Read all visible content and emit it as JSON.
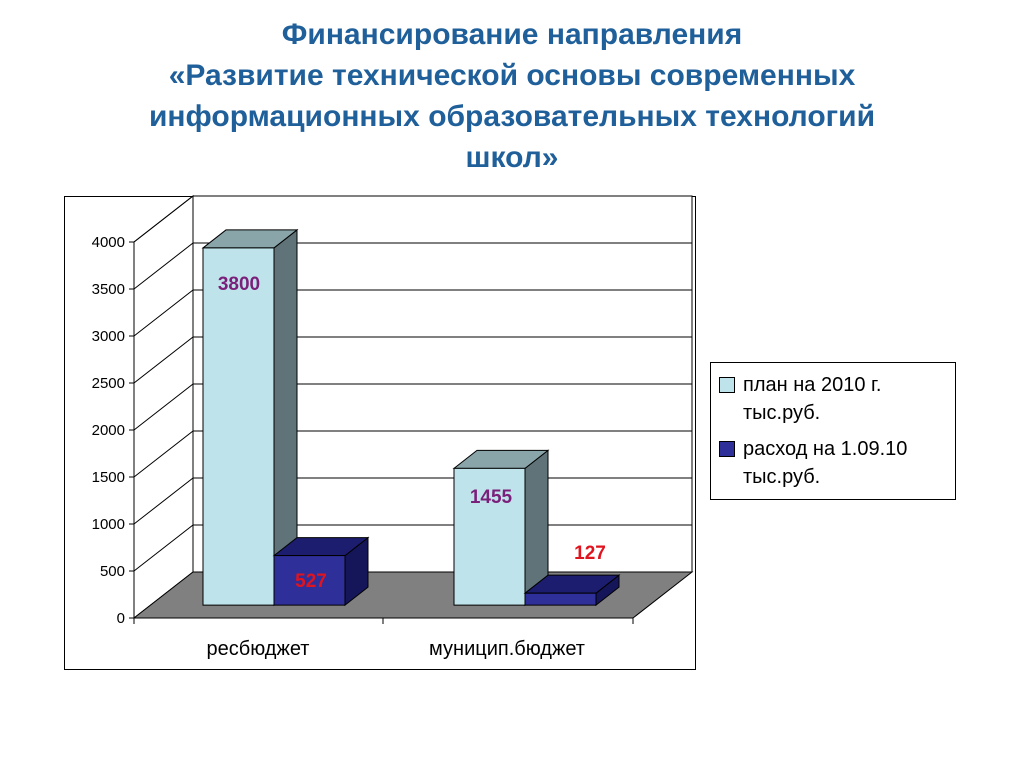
{
  "title": {
    "line1": "Финансирование направления",
    "line2": "«Развитие технической основы современных",
    "line3": "информационных образовательных технологий",
    "line4": "школ»"
  },
  "colors": {
    "title": "#1f5f9a",
    "plan_front": "#bfe3ea",
    "plan_top": "#8aa5aa",
    "plan_side": "#5f7378",
    "fact_front": "#2f2f9a",
    "fact_top": "#1d1d70",
    "fact_side": "#15155a",
    "floor": "#808080",
    "label_purple": "#7a1f7a",
    "label_red": "#e0141e"
  },
  "chart_data": {
    "type": "bar",
    "categories": [
      "ресбюджет",
      "муницип.бюджет"
    ],
    "series": [
      {
        "name": "план на 2010 г. тыс.руб.",
        "values": [
          3800,
          1455
        ]
      },
      {
        "name": "расход на 1.09.10 тыс.руб.",
        "values": [
          527,
          127
        ]
      }
    ],
    "data_labels": [
      "3800",
      "527",
      "1455",
      "127"
    ],
    "yticks": [
      "0",
      "500",
      "1000",
      "1500",
      "2000",
      "2500",
      "3000",
      "3500",
      "4000"
    ],
    "ylim": [
      0,
      4000
    ],
    "grid": true,
    "legend_position": "right",
    "three_d": true
  },
  "legend": {
    "item1_line1": "план на 2010 г.",
    "item1_line2": "тыс.руб.",
    "item2_line1": "расход на 1.09.10",
    "item2_line2": "тыс.руб."
  }
}
